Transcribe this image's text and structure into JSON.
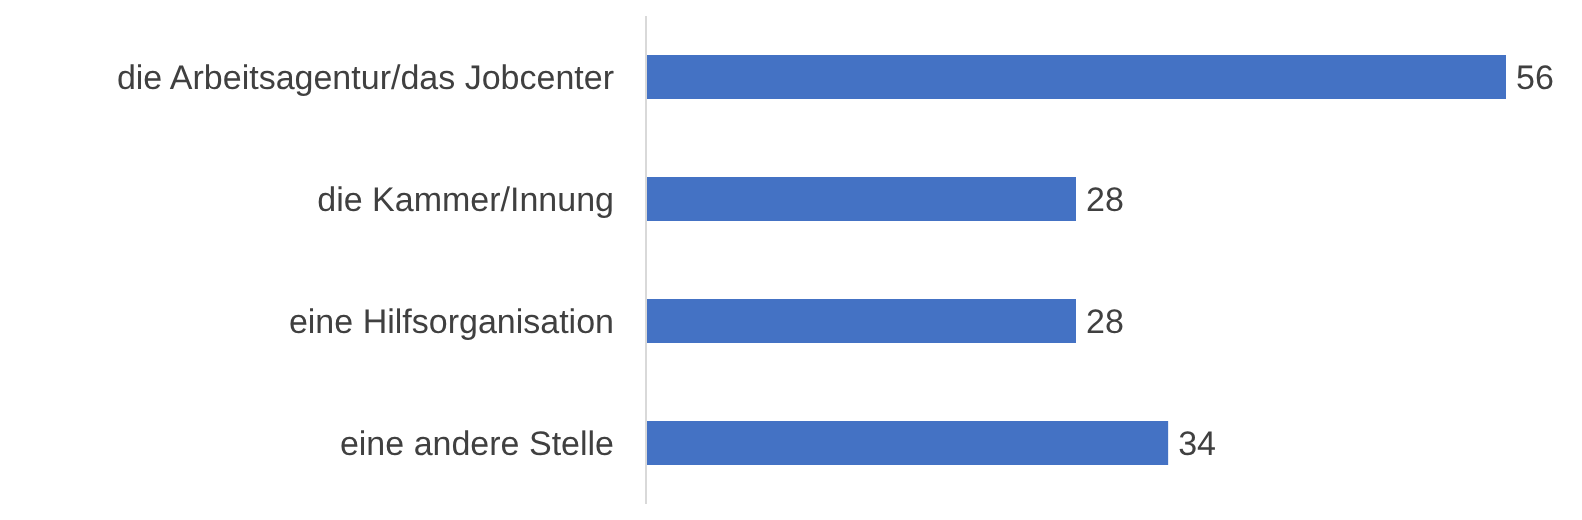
{
  "chart_data": {
    "type": "bar",
    "orientation": "horizontal",
    "categories": [
      "die Arbeitsagentur/das Jobcenter",
      "die Kammer/Innung",
      "eine Hilfsorganisation",
      "eine andere Stelle"
    ],
    "values": [
      56,
      28,
      28,
      34
    ],
    "color": "#4472c4",
    "data_labels": true
  }
}
